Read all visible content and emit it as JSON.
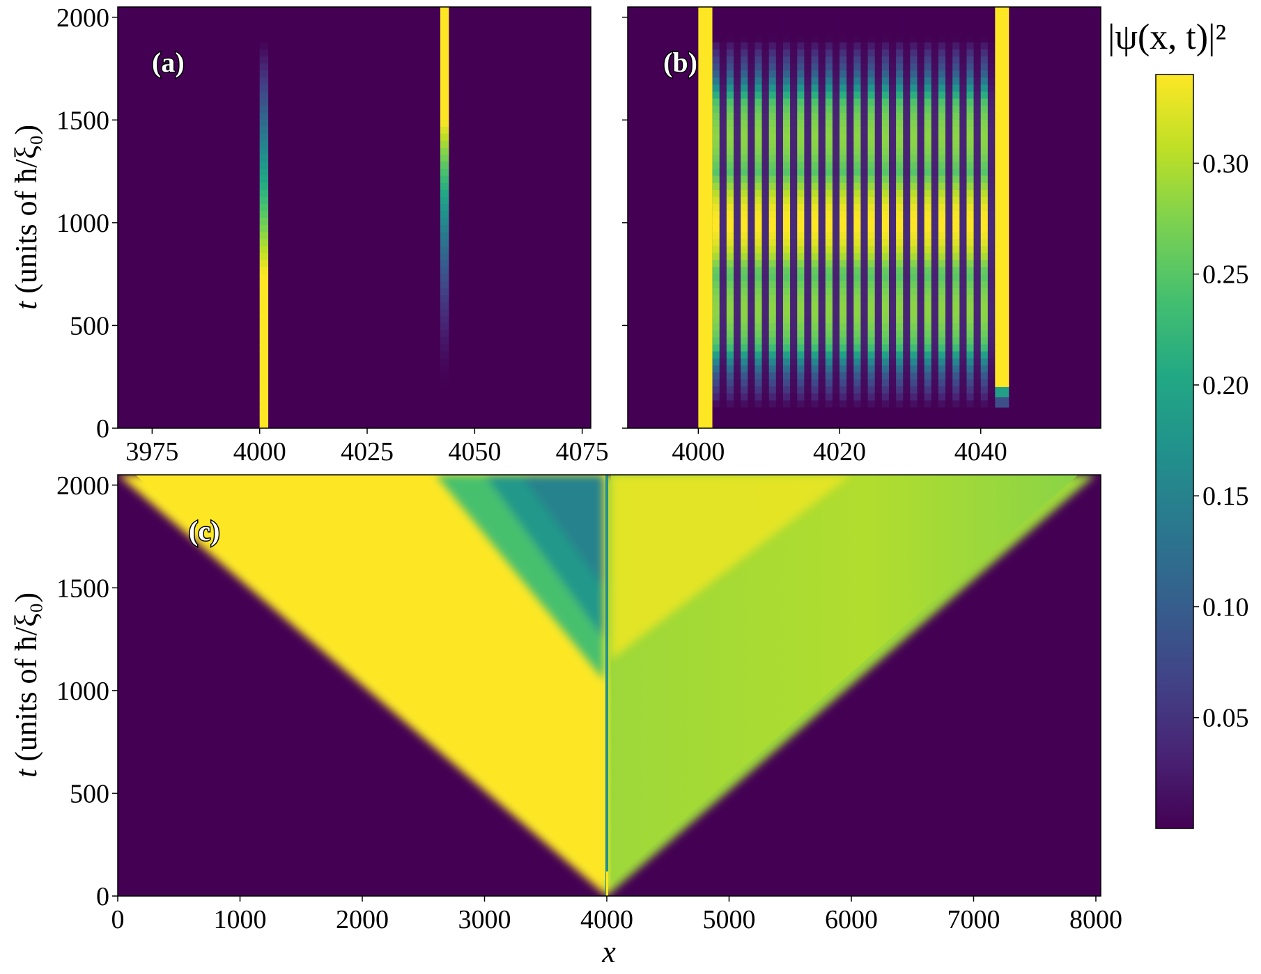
{
  "colorbar": {
    "title": "|ψ(x, t)|²",
    "ticks": [
      0.05,
      0.1,
      0.15,
      0.2,
      0.25,
      0.3
    ],
    "tick_labels": [
      "0.05",
      "0.10",
      "0.15",
      "0.20",
      "0.25",
      "0.30"
    ],
    "range": [
      0.0,
      0.34
    ],
    "colormap": "viridis"
  },
  "chart_data": [
    {
      "id": "a",
      "type": "heatmap",
      "panel_label": "(a)",
      "xlim": [
        3967,
        4077
      ],
      "ylim": [
        0,
        2050
      ],
      "xticks": [
        3975,
        4000,
        4025,
        4050,
        4075
      ],
      "xtick_labels": [
        "3975",
        "4000",
        "4025",
        "4050",
        "4075"
      ],
      "yticks": [
        0,
        500,
        1000,
        1500,
        2000
      ],
      "ytick_labels": [
        "0",
        "500",
        "1000",
        "1500",
        "2000"
      ],
      "ylabel_italic": "t",
      "ylabel_text": " (units of ħ/ξ₀)",
      "features": [
        {
          "x": [
            4000,
            4002
          ],
          "profile": "left-soliton",
          "t_bright_until": 750,
          "t_fade_end": 2050
        },
        {
          "x": [
            4042,
            4044
          ],
          "profile": "right-soliton",
          "t_rise_start": 200,
          "t_bright_from": 1500
        }
      ]
    },
    {
      "id": "b",
      "type": "heatmap",
      "panel_label": "(b)",
      "xlim": [
        3990,
        4057
      ],
      "ylim": [
        0,
        2050
      ],
      "xticks": [
        4000,
        4020,
        4040
      ],
      "xtick_labels": [
        "4000",
        "4020",
        "4040"
      ],
      "yticks": [
        0,
        500,
        1000,
        1500,
        2000
      ],
      "ytick_labels": [
        "",
        "",
        "",
        "",
        ""
      ],
      "features": [
        {
          "x": [
            4000,
            4002
          ],
          "profile": "constant-bright"
        },
        {
          "x": [
            4042,
            4044
          ],
          "profile": "bright-from",
          "t_start": 200
        },
        {
          "x_range": [
            4002,
            4042
          ],
          "profile": "standing-wave",
          "period_x": 2
        }
      ]
    },
    {
      "id": "c",
      "type": "heatmap",
      "panel_label": "(c)",
      "xlim": [
        0,
        8040
      ],
      "ylim": [
        0,
        2050
      ],
      "xticks": [
        0,
        1000,
        2000,
        3000,
        4000,
        5000,
        6000,
        7000,
        8000
      ],
      "xtick_labels": [
        "0",
        "1000",
        "2000",
        "3000",
        "4000",
        "5000",
        "6000",
        "7000",
        "8000"
      ],
      "yticks": [
        0,
        500,
        1000,
        1500,
        2000
      ],
      "ytick_labels": [
        "0",
        "500",
        "1000",
        "1500",
        "2000"
      ],
      "xlabel": "x",
      "ylabel_italic": "t",
      "ylabel_text": " (units of ħ/ξ₀)",
      "features": [
        {
          "region": "left-cone",
          "apex": [
            4000,
            0
          ],
          "edge_speed": 1.95,
          "value": 0.34
        },
        {
          "region": "left-depleted-wedge",
          "value": 0.16
        },
        {
          "region": "right-cone",
          "apex": [
            4000,
            0
          ],
          "edge_speed": 1.95,
          "value": 0.29
        }
      ]
    }
  ]
}
